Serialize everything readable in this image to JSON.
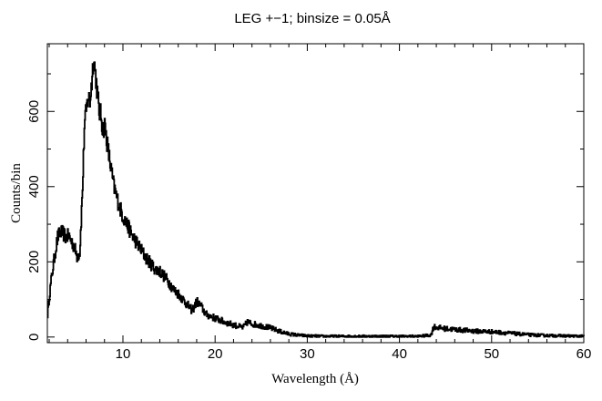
{
  "chart_data": {
    "type": "line",
    "title": "LEG +−1; binsize = 0.05Å",
    "xlabel": "Wavelength (Å)",
    "ylabel": "Counts/bin",
    "xlim": [
      1.8,
      60
    ],
    "ylim": [
      -15,
      780
    ],
    "x_ticks": [
      10,
      20,
      30,
      40,
      50,
      60
    ],
    "x_tick_labels": [
      "10",
      "20",
      "30",
      "40",
      "50",
      "60"
    ],
    "x_minor_step": 2,
    "y_ticks": [
      0,
      200,
      400,
      600
    ],
    "y_tick_labels": [
      "0",
      "200",
      "400",
      "600"
    ],
    "y_minor_step": 100,
    "grid": false,
    "legend": "none",
    "series": [
      {
        "line_color": "#000000",
        "x": [
          1.8,
          2.0,
          2.3,
          2.6,
          2.9,
          3.2,
          3.5,
          3.8,
          4.1,
          4.4,
          4.7,
          5.0,
          5.3,
          5.6,
          5.8,
          6.0,
          6.2,
          6.4,
          6.6,
          6.8,
          7.0,
          7.2,
          7.4,
          7.6,
          7.8,
          8.0,
          8.3,
          8.6,
          9.0,
          9.5,
          10.0,
          10.5,
          11.0,
          11.5,
          12.0,
          12.5,
          13.0,
          13.5,
          14.0,
          14.5,
          15.0,
          15.5,
          16.0,
          16.5,
          17.0,
          17.5,
          18.0,
          18.5,
          19.0,
          20.0,
          21.0,
          22.0,
          23.0,
          23.5,
          24.0,
          25.0,
          26.0,
          27.0,
          28.0,
          29.0,
          30.0,
          32.0,
          35.0,
          38.0,
          40.0,
          42.0,
          43.4,
          43.7,
          44.0,
          45.0,
          46.0,
          47.0,
          48.0,
          50.0,
          52.0,
          54.0,
          56.0,
          58.0,
          60.0
        ],
        "values": [
          60,
          110,
          170,
          220,
          265,
          280,
          275,
          265,
          270,
          255,
          240,
          215,
          225,
          395,
          560,
          600,
          640,
          625,
          680,
          745,
          700,
          650,
          600,
          590,
          550,
          565,
          510,
          460,
          400,
          355,
          320,
          295,
          270,
          250,
          230,
          210,
          195,
          180,
          175,
          160,
          145,
          125,
          115,
          100,
          85,
          70,
          95,
          80,
          60,
          50,
          40,
          32,
          25,
          40,
          35,
          30,
          24,
          15,
          8,
          5,
          3,
          2,
          2,
          2,
          2,
          2,
          5,
          28,
          26,
          22,
          20,
          18,
          16,
          14,
          10,
          6,
          4,
          3,
          2
        ]
      }
    ]
  }
}
